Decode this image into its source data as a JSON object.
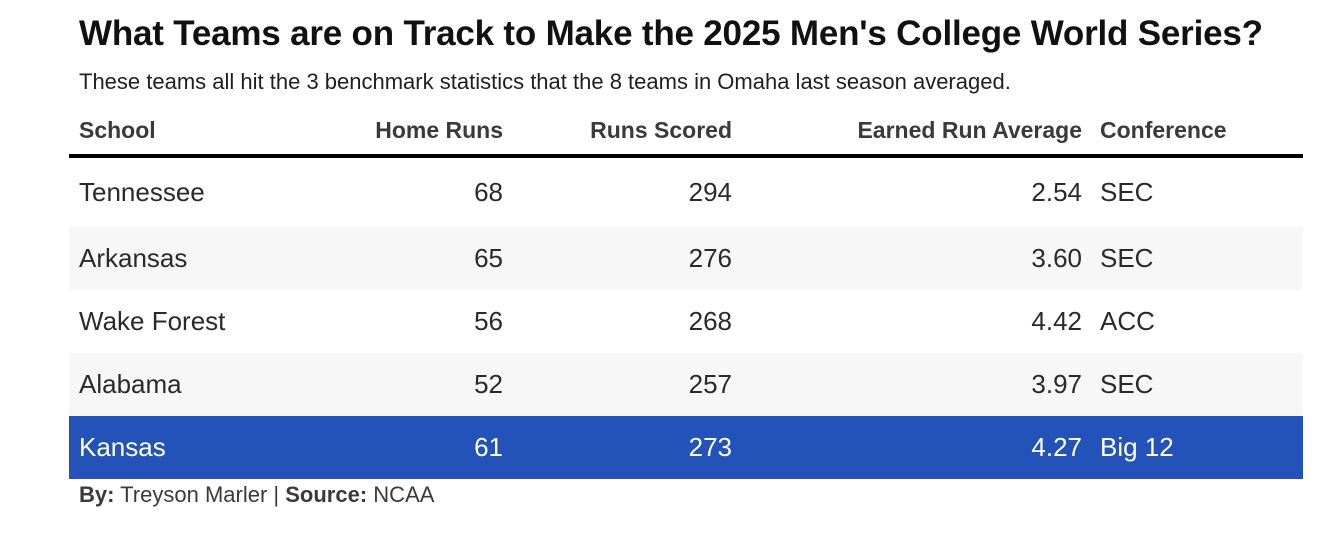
{
  "title": "What Teams are on Track to Make the 2025 Men's College World Series?",
  "subtitle": "These teams all hit the 3 benchmark statistics that the 8 teams in Omaha last season averaged.",
  "footer": {
    "by_label": "By:",
    "author": "Treyson Marler",
    "separator": "|",
    "source_label": "Source:",
    "source": "NCAA"
  },
  "colors": {
    "highlight_row": "#2352b8",
    "alt_row": "#f7f7f7",
    "header_rule": "#000000"
  },
  "chart_data": {
    "type": "table",
    "columns": [
      "School",
      "Home Runs",
      "Runs Scored",
      "Earned Run Average",
      "Conference"
    ],
    "rows": [
      {
        "school": "Tennessee",
        "home_runs": "68",
        "runs_scored": "294",
        "era": "2.54",
        "conference": "SEC"
      },
      {
        "school": "Arkansas",
        "home_runs": "65",
        "runs_scored": "276",
        "era": "3.60",
        "conference": "SEC"
      },
      {
        "school": "Wake Forest",
        "home_runs": "56",
        "runs_scored": "268",
        "era": "4.42",
        "conference": "ACC"
      },
      {
        "school": "Alabama",
        "home_runs": "52",
        "runs_scored": "257",
        "era": "3.97",
        "conference": "SEC"
      },
      {
        "school": "Kansas",
        "home_runs": "61",
        "runs_scored": "273",
        "era": "4.27",
        "conference": "Big 12",
        "highlighted": true
      }
    ]
  }
}
